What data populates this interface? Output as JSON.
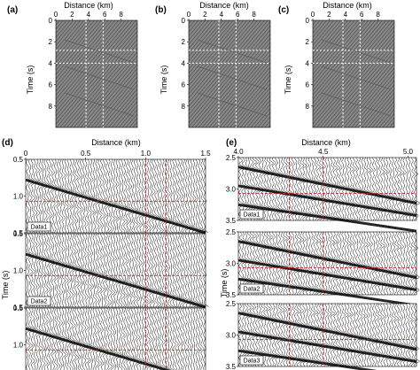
{
  "top_panels": [
    {
      "letter": "(a)",
      "xlabel": "Distance (km)",
      "ylabel": "Time (s)",
      "xticks": [
        "0",
        "2",
        "4",
        "6",
        "8"
      ],
      "yticks": [
        "0",
        "2",
        "4",
        "6",
        "8"
      ]
    },
    {
      "letter": "(b)",
      "xlabel": "Distance (km)",
      "ylabel": "Time (s)",
      "xticks": [
        "0",
        "2",
        "4",
        "6",
        "8"
      ],
      "yticks": [
        "0",
        "2",
        "4",
        "6",
        "8"
      ]
    },
    {
      "letter": "(c)",
      "xlabel": "Distance (km)",
      "ylabel": "Time (s)",
      "xticks": [
        "0",
        "2",
        "4",
        "6",
        "8"
      ],
      "yticks": [
        "0",
        "2",
        "4",
        "6",
        "8"
      ]
    }
  ],
  "panel_d": {
    "letter": "(d)",
    "xlabel": "Distance (km)",
    "ylabel": "Time (s)",
    "xticks": [
      "0",
      "0.5",
      "1.0",
      "1.5"
    ],
    "yticks": [
      "0.5",
      "1.0",
      "1.5"
    ],
    "tags": [
      "Data1",
      "Data2",
      "Data3"
    ]
  },
  "panel_e": {
    "letter": "(e)",
    "xlabel": "Distance (km)",
    "ylabel": "Time (s)",
    "xticks": [
      "4.0",
      "4.5",
      "5.0"
    ],
    "yticks": [
      "2.5",
      "3.0",
      "3.5"
    ],
    "tags": [
      "Data1",
      "Data2",
      "Data3"
    ]
  },
  "colors": {
    "guide_white": "#ffffff",
    "guide_red": "#d42020",
    "panel_gray": "#7a7a7a"
  },
  "chart_data": [
    {
      "type": "heatmap",
      "xlabel": "Distance (km)",
      "ylabel": "Time (s)",
      "xlim": [
        0,
        10
      ],
      "ylim": [
        0,
        10
      ],
      "guide_x_km": [
        3.7,
        5.8
      ],
      "guide_t_s": [
        2.8,
        4.0
      ]
    },
    {
      "type": "heatmap",
      "xlabel": "Distance (km)",
      "ylabel": "Time (s)",
      "xlim": [
        0,
        10
      ],
      "ylim": [
        0,
        10
      ],
      "guide_x_km": [
        3.7,
        5.8
      ],
      "guide_t_s": [
        2.8,
        4.0
      ]
    },
    {
      "type": "heatmap",
      "xlabel": "Distance (km)",
      "ylabel": "Time (s)",
      "xlim": [
        0,
        10
      ],
      "ylim": [
        0,
        10
      ],
      "guide_x_km": [
        3.7,
        5.8
      ],
      "guide_t_s": [
        2.8,
        4.0
      ]
    },
    {
      "type": "line",
      "xlabel": "Distance (km)",
      "ylabel": "Time (s)",
      "xlim": [
        0,
        1.5
      ],
      "ylim": [
        0.5,
        1.5
      ],
      "guide_x_km": [
        1.0,
        1.17
      ],
      "guide_t_s": [
        1.07
      ]
    },
    {
      "type": "line",
      "xlabel": "Distance (km)",
      "ylabel": "Time (s)",
      "xlim": [
        4.0,
        5.05
      ],
      "ylim": [
        2.5,
        3.5
      ],
      "guide_x_km": [
        4.3,
        4.5
      ],
      "guide_t_s": [
        3.07
      ]
    }
  ]
}
